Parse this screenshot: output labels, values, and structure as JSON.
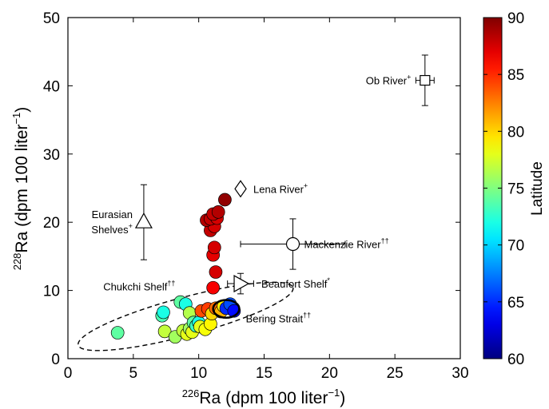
{
  "chart_data": {
    "type": "scatter",
    "xlabel": {
      "sup": "226",
      "main": "Ra (dpm 100 liter",
      "exp": "−1",
      "close": ")"
    },
    "ylabel": {
      "sup": "228",
      "main": "Ra (dpm 100 liter",
      "exp": "−1",
      "close": ")"
    },
    "xlim": [
      0,
      30
    ],
    "ylim": [
      0,
      50
    ],
    "xticks": [
      0,
      5,
      10,
      15,
      20,
      25,
      30
    ],
    "yticks": [
      0,
      10,
      20,
      30,
      40,
      50
    ],
    "colorbar": {
      "label": "Latitude",
      "min": 60,
      "max": 90,
      "ticks": [
        60,
        65,
        70,
        75,
        80,
        85,
        90
      ],
      "colormap": "jet"
    },
    "points": [
      {
        "x": 3.8,
        "y": 3.8,
        "lat": 74
      },
      {
        "x": 7.2,
        "y": 6.3,
        "lat": 73.5
      },
      {
        "x": 7.3,
        "y": 6.8,
        "lat": 72
      },
      {
        "x": 7.4,
        "y": 4.0,
        "lat": 77
      },
      {
        "x": 8.2,
        "y": 3.2,
        "lat": 76
      },
      {
        "x": 8.6,
        "y": 8.3,
        "lat": 74
      },
      {
        "x": 8.8,
        "y": 4.1,
        "lat": 77
      },
      {
        "x": 9.0,
        "y": 8.0,
        "lat": 72
      },
      {
        "x": 9.1,
        "y": 3.6,
        "lat": 78
      },
      {
        "x": 9.3,
        "y": 4.4,
        "lat": 76
      },
      {
        "x": 9.3,
        "y": 6.7,
        "lat": 76.5
      },
      {
        "x": 9.5,
        "y": 3.9,
        "lat": 78
      },
      {
        "x": 9.6,
        "y": 5.3,
        "lat": 74
      },
      {
        "x": 9.8,
        "y": 4.8,
        "lat": 73
      },
      {
        "x": 10.0,
        "y": 5.3,
        "lat": 72
      },
      {
        "x": 10.1,
        "y": 4.7,
        "lat": 78
      },
      {
        "x": 10.2,
        "y": 7.0,
        "lat": 84
      },
      {
        "x": 10.5,
        "y": 4.3,
        "lat": 78.5
      },
      {
        "x": 10.7,
        "y": 7.3,
        "lat": 84.5
      },
      {
        "x": 10.9,
        "y": 5.1,
        "lat": 79
      },
      {
        "x": 11.0,
        "y": 6.6,
        "lat": 80
      },
      {
        "x": 11.3,
        "y": 7.4,
        "lat": 83
      },
      {
        "x": 11.7,
        "y": 6.9,
        "lat": 81
      },
      {
        "x": 11.9,
        "y": 7.7,
        "lat": 79
      },
      {
        "x": 12.1,
        "y": 7.4,
        "lat": 65
      },
      {
        "x": 12.4,
        "y": 8.0,
        "lat": 66
      },
      {
        "x": 12.7,
        "y": 7.0,
        "lat": 64
      },
      {
        "x": 11.1,
        "y": 10.4,
        "lat": 86.5
      },
      {
        "x": 11.3,
        "y": 12.7,
        "lat": 87.5
      },
      {
        "x": 11.1,
        "y": 15.2,
        "lat": 87
      },
      {
        "x": 11.2,
        "y": 16.3,
        "lat": 87.5
      },
      {
        "x": 10.9,
        "y": 18.8,
        "lat": 88
      },
      {
        "x": 11.2,
        "y": 19.4,
        "lat": 87.5
      },
      {
        "x": 10.6,
        "y": 20.3,
        "lat": 88.5
      },
      {
        "x": 10.9,
        "y": 20.5,
        "lat": 88
      },
      {
        "x": 11.4,
        "y": 20.6,
        "lat": 87.5
      },
      {
        "x": 11.1,
        "y": 21.2,
        "lat": 88
      },
      {
        "x": 11.5,
        "y": 21.5,
        "lat": 88.5
      },
      {
        "x": 12.0,
        "y": 23.3,
        "lat": 89.5
      }
    ],
    "endmembers": [
      {
        "name": "Ob River",
        "mark": "+",
        "marker": "square",
        "x": 27.3,
        "y": 40.8,
        "xerr": 0.7,
        "yerr": 3.7,
        "label_side": "left"
      },
      {
        "name": "Lena River",
        "mark": "+",
        "marker": "diamond",
        "x": 13.2,
        "y": 24.9,
        "label_side": "right"
      },
      {
        "name": "Eurasian",
        "name2": "Shelves",
        "mark": "+",
        "marker": "triangle-up",
        "x": 5.8,
        "y": 20.0,
        "yerr": 5.5,
        "label_side": "left"
      },
      {
        "name": "Mackenzie River",
        "mark": "††",
        "marker": "circle",
        "x": 17.2,
        "y": 16.8,
        "xerr": 4.0,
        "yerr": 3.7,
        "label_side": "right"
      },
      {
        "name": "Beaufort Shelf",
        "mark": "*",
        "marker": "triangle-right",
        "x": 13.2,
        "y": 11.0,
        "xerr": 1.0,
        "yerr": 1.5,
        "label_side": "right"
      }
    ],
    "regions": [
      {
        "name": "Chukchi Shelf",
        "mark": "††",
        "style": "dashed",
        "cx": 9.0,
        "cy": 6.2,
        "rx": 8.5,
        "ry": 2.8,
        "rotation": -15
      },
      {
        "name": "Bering Strait",
        "mark": "††",
        "style": "solid",
        "cx": 12.1,
        "cy": 7.3,
        "rx": 1.0,
        "ry": 1.3,
        "rotation": 0
      }
    ]
  }
}
